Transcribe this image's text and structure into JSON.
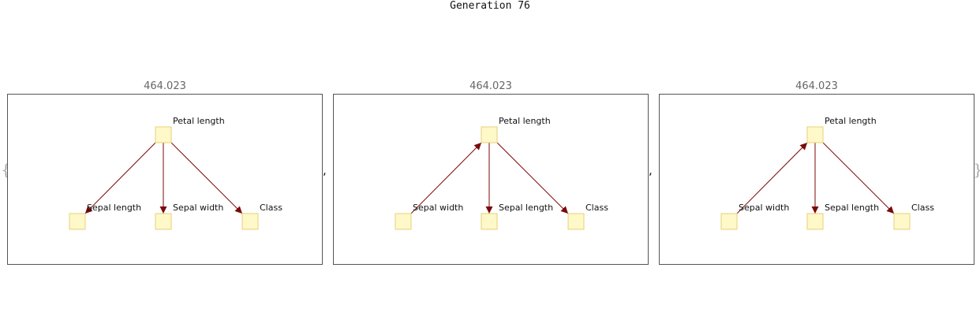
{
  "title": "Generation 76",
  "brace_open": "{",
  "brace_close": "}",
  "separator": ",",
  "panels": [
    {
      "score": "464.023",
      "nodes": [
        {
          "id": "petal_length",
          "label": "Petal length"
        },
        {
          "id": "sepal_length",
          "label": "Sepal length"
        },
        {
          "id": "sepal_width",
          "label": "Sepal width"
        },
        {
          "id": "class",
          "label": "Class"
        }
      ],
      "edges": [
        {
          "from": "petal_length",
          "to": "sepal_length"
        },
        {
          "from": "petal_length",
          "to": "sepal_width"
        },
        {
          "from": "petal_length",
          "to": "class"
        }
      ]
    },
    {
      "score": "464.023",
      "nodes": [
        {
          "id": "petal_length",
          "label": "Petal length"
        },
        {
          "id": "sepal_width",
          "label": "Sepal width"
        },
        {
          "id": "sepal_length",
          "label": "Sepal length"
        },
        {
          "id": "class",
          "label": "Class"
        }
      ],
      "edges": [
        {
          "from": "sepal_width",
          "to": "petal_length"
        },
        {
          "from": "petal_length",
          "to": "sepal_length"
        },
        {
          "from": "petal_length",
          "to": "class"
        }
      ]
    },
    {
      "score": "464.023",
      "nodes": [
        {
          "id": "petal_length",
          "label": "Petal length"
        },
        {
          "id": "sepal_width",
          "label": "Sepal width"
        },
        {
          "id": "sepal_length",
          "label": "Sepal length"
        },
        {
          "id": "class",
          "label": "Class"
        }
      ],
      "edges": [
        {
          "from": "sepal_width",
          "to": "petal_length"
        },
        {
          "from": "petal_length",
          "to": "sepal_length"
        },
        {
          "from": "petal_length",
          "to": "class"
        }
      ]
    }
  ],
  "colors": {
    "node_fill": "#fff8c8",
    "node_stroke": "#e6d27a",
    "edge": "#7a0a0a",
    "frame": "#555555",
    "score_text": "#666666"
  }
}
